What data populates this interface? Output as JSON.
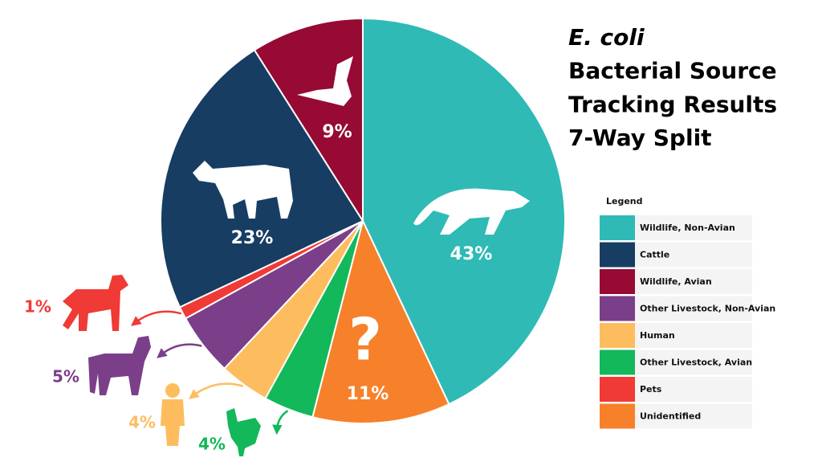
{
  "chart_data": {
    "type": "pie",
    "title": [
      "E. coli",
      "Bacterial Source",
      "Tracking Results",
      "7-Way Split"
    ],
    "categories": [
      "Wildlife, Non-Avian",
      "Unidentified",
      "Other Livestock, Avian",
      "Human",
      "Other Livestock, Non-Avian",
      "Pets",
      "Cattle",
      "Wildlife, Avian"
    ],
    "values": [
      43,
      11,
      4,
      4,
      5,
      1,
      23,
      9
    ],
    "value_labels": [
      "43%",
      "11%",
      "4%",
      "4%",
      "5%",
      "1%",
      "23%",
      "9%"
    ],
    "colors": [
      "#2fbab6",
      "#f7802b",
      "#12b85a",
      "#fdbd5f",
      "#7b3f8a",
      "#f03a36",
      "#173d63",
      "#960a34"
    ],
    "unidentified_icon": "?",
    "legend": {
      "title": "Legend",
      "entries": [
        "Wildlife, Non-Avian",
        "Cattle",
        "Wildlife, Avian",
        "Other Livestock, Non-Avian",
        "Human",
        "Other Livestock, Avian",
        "Pets",
        "Unidentified"
      ]
    }
  }
}
